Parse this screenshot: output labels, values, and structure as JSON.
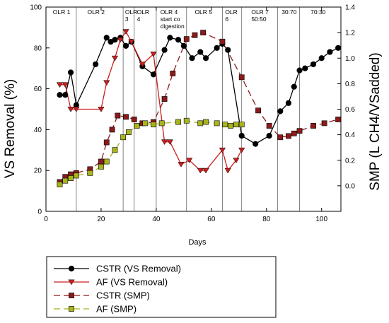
{
  "chart_data": {
    "type": "line",
    "xlabel": "Days",
    "ylabel_left": "VS Removal (%)",
    "ylabel_right": "SMP (L CH4/VSadded)",
    "xlim": [
      0,
      107
    ],
    "ylim_left": [
      0,
      100
    ],
    "ylim_right": [
      -0.2,
      1.4
    ],
    "xticks": [
      0,
      20,
      40,
      60,
      80,
      100
    ],
    "yticks_left": [
      0,
      20,
      40,
      60,
      80,
      100
    ],
    "yticks_right": [
      0.0,
      0.2,
      0.4,
      0.6,
      0.8,
      1.0,
      1.2,
      1.4
    ],
    "phase_boundaries": [
      11,
      28,
      32,
      40,
      51,
      64,
      71,
      84,
      92
    ],
    "phases": [
      {
        "lines": [
          "OLR 1"
        ],
        "x": 2.5
      },
      {
        "lines": [
          "OLR 2"
        ],
        "x": 15
      },
      {
        "lines": [
          "OLR",
          "3"
        ],
        "x": 28.7
      },
      {
        "lines": [
          "OLR",
          "4"
        ],
        "x": 33
      },
      {
        "lines": [
          "OLR 4",
          "start co",
          "digestion"
        ],
        "x": 41.5
      },
      {
        "lines": [
          "OLR 5"
        ],
        "x": 54
      },
      {
        "lines": [
          "OLR",
          "6"
        ],
        "x": 65
      },
      {
        "lines": [
          "OLR 7",
          "50:50"
        ],
        "x": 74.5
      },
      {
        "lines": [
          "30:70"
        ],
        "x": 85.5
      },
      {
        "lines": [
          "70:30"
        ],
        "x": 96
      }
    ],
    "series": [
      {
        "name": "CSTR (VS Removal)",
        "axis": "left",
        "color": "#000000",
        "marker": "circle",
        "dash": "solid",
        "x": [
          5,
          7,
          9,
          11,
          18,
          22,
          23.5,
          25,
          27,
          29,
          31,
          35,
          39,
          43,
          45,
          48,
          50,
          53,
          56,
          58,
          62,
          64,
          66,
          71,
          76,
          81,
          85,
          88,
          90,
          92,
          94,
          97,
          100,
          103,
          106
        ],
        "y": [
          57,
          57,
          68,
          52,
          72,
          85,
          83,
          84,
          85,
          81,
          83,
          71,
          67,
          79,
          85,
          84,
          81,
          75,
          78,
          75,
          80,
          82,
          79,
          37,
          33,
          37,
          49,
          53,
          61,
          69,
          70,
          72,
          75,
          78,
          80
        ]
      },
      {
        "name": "AF (VS Removal)",
        "axis": "left",
        "color": "#cc1f1f",
        "marker": "triangle-down",
        "dash": "solid",
        "x": [
          5,
          7,
          9,
          11,
          20,
          22,
          25,
          27,
          29,
          31,
          35,
          39,
          43,
          45,
          49,
          52,
          56,
          58,
          64,
          66,
          69,
          71
        ],
        "y": [
          62,
          62,
          50,
          50,
          50,
          63,
          75,
          84,
          88,
          83,
          72,
          77,
          34,
          34,
          23,
          25,
          20,
          20,
          30,
          20,
          25,
          30
        ]
      },
      {
        "name": "CSTR (SMP)",
        "axis": "right",
        "color": "#8b1a1a",
        "marker": "square",
        "dash": "dashed",
        "x": [
          5,
          7,
          9,
          11,
          16,
          20,
          22,
          24,
          26,
          29,
          32,
          35,
          39,
          43,
          46,
          51,
          54,
          57,
          64,
          71,
          77,
          81,
          85,
          88,
          90,
          92,
          97,
          101,
          106
        ],
        "y": [
          0.03,
          0.07,
          0.09,
          0.1,
          0.13,
          0.19,
          0.34,
          0.44,
          0.55,
          0.54,
          0.52,
          0.49,
          0.5,
          0.68,
          0.88,
          1.15,
          1.18,
          1.2,
          1.13,
          0.85,
          0.59,
          0.47,
          0.38,
          0.39,
          0.41,
          0.43,
          0.47,
          0.49,
          0.52
        ]
      },
      {
        "name": "AF (SMP)",
        "axis": "right",
        "color": "#a8b41e",
        "marker": "square",
        "dash": "dashed",
        "x": [
          5,
          7,
          9,
          11,
          16,
          20,
          22,
          25,
          28,
          30,
          33,
          36,
          39,
          42,
          48,
          51,
          56,
          58,
          62,
          65,
          67,
          69,
          71
        ],
        "y": [
          0.01,
          0.04,
          0.06,
          0.08,
          0.1,
          0.15,
          0.19,
          0.28,
          0.38,
          0.42,
          0.47,
          0.49,
          0.48,
          0.49,
          0.5,
          0.51,
          0.49,
          0.5,
          0.49,
          0.48,
          0.47,
          0.48,
          0.48
        ]
      }
    ],
    "legend": {
      "placement": "bottom",
      "entries": [
        "CSTR (VS Removal)",
        "AF (VS Removal)",
        "CSTR (SMP)",
        "AF (SMP)"
      ]
    }
  }
}
